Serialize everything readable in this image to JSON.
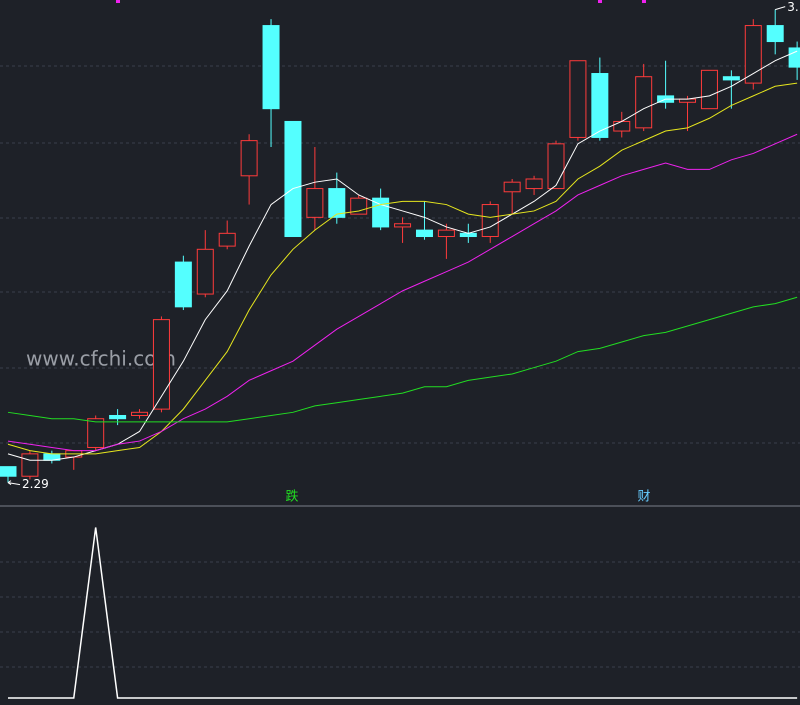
{
  "chart_data": [
    {
      "type": "candlestick",
      "watermark": "www.cfchi.com",
      "low_label": "2.29",
      "high_label": "3.",
      "signals": [
        {
          "text": "跌",
          "color": "#22dd22"
        },
        {
          "text": "财",
          "color": "#66ccff"
        }
      ],
      "up_color": "#ff3b3b",
      "down_color": "#54ffff",
      "ylim": [
        2.22,
        3.8
      ],
      "open": [
        2.34,
        2.31,
        2.38,
        2.37,
        2.4,
        2.5,
        2.5,
        2.52,
        2.98,
        2.88,
        3.03,
        3.25,
        3.72,
        3.42,
        3.12,
        3.21,
        3.13,
        3.18,
        3.09,
        3.08,
        3.06,
        3.07,
        3.06,
        3.2,
        3.21,
        3.21,
        3.37,
        3.57,
        3.39,
        3.4,
        3.5,
        3.48,
        3.46,
        3.56,
        3.54,
        3.72,
        3.65
      ],
      "high": [
        2.34,
        2.39,
        2.39,
        2.39,
        2.5,
        2.52,
        2.52,
        2.81,
        3.0,
        3.08,
        3.11,
        3.38,
        3.74,
        3.42,
        3.34,
        3.26,
        3.19,
        3.21,
        3.12,
        3.17,
        3.1,
        3.1,
        3.17,
        3.24,
        3.25,
        3.36,
        3.61,
        3.62,
        3.45,
        3.6,
        3.61,
        3.5,
        3.58,
        3.58,
        3.74,
        3.77,
        3.67
      ],
      "low": [
        2.29,
        2.3,
        2.35,
        2.33,
        2.39,
        2.47,
        2.49,
        2.51,
        2.83,
        2.87,
        3.02,
        3.16,
        3.34,
        3.06,
        3.08,
        3.1,
        3.13,
        3.08,
        3.04,
        3.05,
        2.99,
        3.04,
        3.04,
        3.13,
        3.19,
        3.21,
        3.36,
        3.36,
        3.37,
        3.39,
        3.46,
        3.39,
        3.46,
        3.46,
        3.52,
        3.63,
        3.55
      ],
      "close": [
        2.31,
        2.38,
        2.36,
        2.39,
        2.49,
        2.49,
        2.51,
        2.8,
        2.84,
        3.02,
        3.07,
        3.36,
        3.46,
        3.06,
        3.21,
        3.12,
        3.18,
        3.09,
        3.1,
        3.06,
        3.08,
        3.06,
        3.16,
        3.23,
        3.24,
        3.35,
        3.61,
        3.37,
        3.42,
        3.56,
        3.48,
        3.49,
        3.58,
        3.55,
        3.72,
        3.67,
        3.59
      ],
      "series": [
        {
          "color": "#ffffff",
          "values": [
            2.38,
            2.36,
            2.36,
            2.37,
            2.39,
            2.41,
            2.45,
            2.56,
            2.67,
            2.8,
            2.89,
            3.03,
            3.16,
            3.21,
            3.23,
            3.24,
            3.19,
            3.16,
            3.14,
            3.12,
            3.09,
            3.07,
            3.09,
            3.13,
            3.17,
            3.22,
            3.35,
            3.39,
            3.42,
            3.46,
            3.49,
            3.49,
            3.5,
            3.53,
            3.57,
            3.61,
            3.64
          ]
        },
        {
          "color": "#e6e61e",
          "values": [
            2.41,
            2.39,
            2.38,
            2.38,
            2.38,
            2.39,
            2.4,
            2.45,
            2.52,
            2.61,
            2.7,
            2.83,
            2.94,
            3.02,
            3.08,
            3.13,
            3.14,
            3.16,
            3.17,
            3.17,
            3.16,
            3.13,
            3.12,
            3.13,
            3.14,
            3.17,
            3.24,
            3.28,
            3.33,
            3.36,
            3.39,
            3.4,
            3.43,
            3.47,
            3.5,
            3.53,
            3.54
          ]
        },
        {
          "color": "#ee22ee",
          "values": [
            2.42,
            2.41,
            2.4,
            2.39,
            2.39,
            2.41,
            2.42,
            2.45,
            2.49,
            2.52,
            2.56,
            2.61,
            2.64,
            2.67,
            2.72,
            2.77,
            2.81,
            2.85,
            2.89,
            2.92,
            2.95,
            2.98,
            3.02,
            3.06,
            3.1,
            3.14,
            3.19,
            3.22,
            3.25,
            3.27,
            3.29,
            3.27,
            3.27,
            3.3,
            3.32,
            3.35,
            3.38
          ]
        },
        {
          "color": "#22dd22",
          "values": [
            2.51,
            2.5,
            2.49,
            2.49,
            2.48,
            2.48,
            2.48,
            2.48,
            2.48,
            2.48,
            2.48,
            2.49,
            2.5,
            2.51,
            2.53,
            2.54,
            2.55,
            2.56,
            2.57,
            2.59,
            2.59,
            2.61,
            2.62,
            2.63,
            2.65,
            2.67,
            2.7,
            2.71,
            2.73,
            2.75,
            2.76,
            2.78,
            2.8,
            2.82,
            2.84,
            2.85,
            2.87
          ]
        }
      ]
    },
    {
      "type": "line",
      "ylim": [
        0,
        1.12
      ],
      "series": [
        {
          "color": "#ffffff",
          "values": [
            0,
            0,
            0,
            0,
            1,
            0,
            0,
            0,
            0,
            0,
            0,
            0,
            0,
            0,
            0,
            0,
            0,
            0,
            0,
            0,
            0,
            0,
            0,
            0,
            0,
            0,
            0,
            0,
            0,
            0,
            0,
            0,
            0,
            0,
            0,
            0,
            0
          ]
        }
      ]
    }
  ]
}
